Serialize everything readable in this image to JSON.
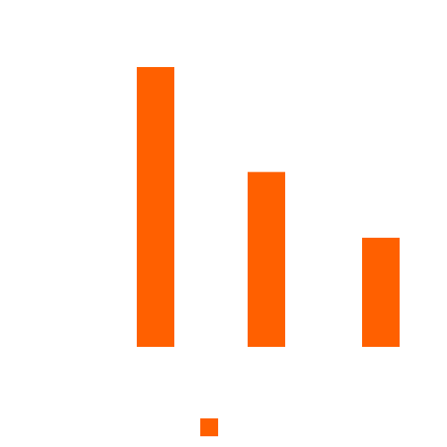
{
  "chart_data": {
    "type": "bar",
    "categories": [
      "",
      "",
      ""
    ],
    "series": [
      {
        "values": [
          100,
          62.5,
          39
        ]
      }
    ],
    "ylim": [
      0,
      100
    ],
    "grid": false,
    "legend": "bottom-center",
    "colors": {
      "bar": "#ff6000",
      "legend_swatch": "#ff6000"
    }
  }
}
